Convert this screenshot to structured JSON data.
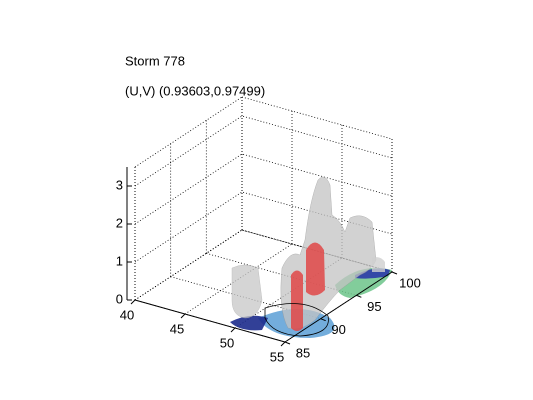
{
  "chart_data": {
    "type": "isosurface3d",
    "title": "Storm 778",
    "subtitle": "(U,V) (0.93603,0.97499)",
    "xlim": [
      40,
      55
    ],
    "xticks": [
      40,
      45,
      50,
      55
    ],
    "ylim": [
      85,
      100
    ],
    "yticks": [
      85,
      90,
      95,
      100
    ],
    "zlim": [
      0,
      3.5
    ],
    "zticks": [
      0,
      1,
      2,
      3
    ],
    "grid": true
  }
}
